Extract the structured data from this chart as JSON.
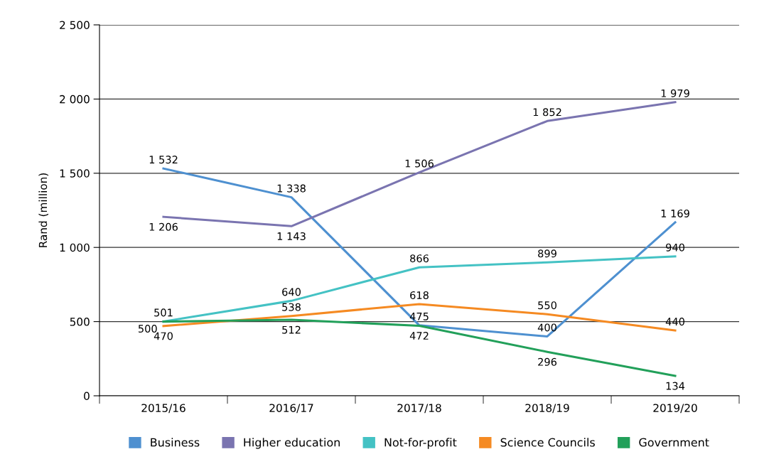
{
  "chart_data": {
    "type": "line",
    "ylabel": "Rand (million)",
    "categories": [
      "2015/16",
      "2016/17",
      "2017/18",
      "2018/19",
      "2019/20"
    ],
    "ylim": [
      0,
      2500
    ],
    "yticks": [
      {
        "value": 0,
        "label": "0"
      },
      {
        "value": 500,
        "label": "500"
      },
      {
        "value": 1000,
        "label": "1 000"
      },
      {
        "value": 1500,
        "label": "1 500"
      },
      {
        "value": 2000,
        "label": "2 000"
      },
      {
        "value": 2500,
        "label": "2 500"
      }
    ],
    "grid": "y",
    "legend": "bottom",
    "marker": "none",
    "line_style": "solid",
    "series": [
      {
        "name": "Business",
        "color": "#4e90d0",
        "values": [
          1532,
          1338,
          475,
          400,
          1169
        ],
        "value_labels": [
          "1 532",
          "1 338",
          "475",
          "400",
          "1 169"
        ]
      },
      {
        "name": "Higher education",
        "color": "#7a74b0",
        "values": [
          1206,
          1143,
          1506,
          1852,
          1979
        ],
        "value_labels": [
          "1 206",
          "1 143",
          "1 506",
          "1 852",
          "1 979"
        ]
      },
      {
        "name": "Not-for-profit",
        "color": "#44c2c4",
        "values": [
          501,
          640,
          866,
          899,
          940
        ],
        "value_labels": [
          "501",
          "640",
          "866",
          "899",
          "940"
        ]
      },
      {
        "name": "Science Councils",
        "color": "#f58a22",
        "values": [
          470,
          538,
          618,
          550,
          440
        ],
        "value_labels": [
          "470",
          "538",
          "618",
          "550",
          "440"
        ]
      },
      {
        "name": "Government",
        "color": "#22a05a",
        "values": [
          500,
          512,
          472,
          296,
          134
        ],
        "value_labels": [
          "500",
          "512",
          "472",
          "296",
          "134"
        ]
      }
    ]
  }
}
